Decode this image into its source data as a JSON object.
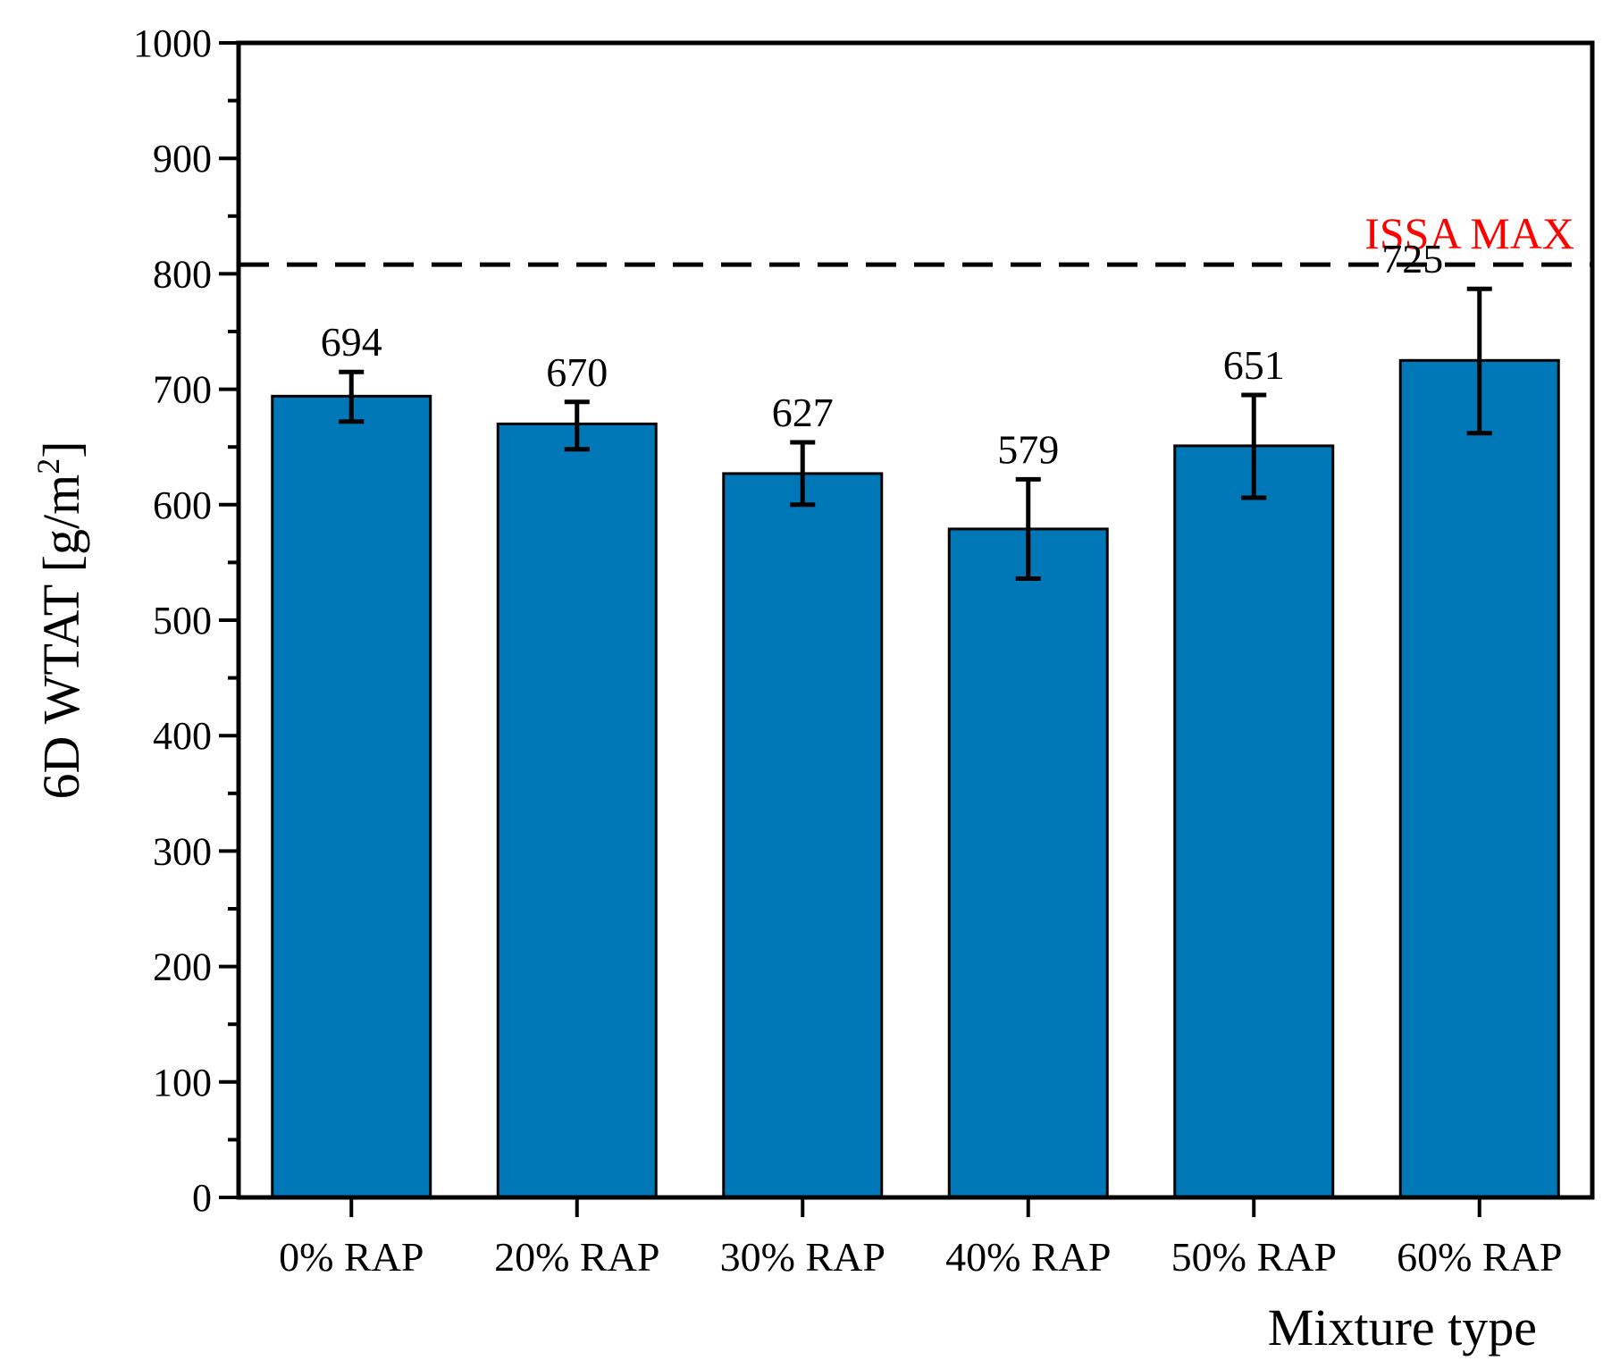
{
  "chart_data": {
    "type": "bar",
    "title": "",
    "xlabel": "Mixture type",
    "ylabel_main": "6D WTAT [g/m",
    "ylabel_sup": "2",
    "ylabel_end": "]",
    "ylim": [
      0,
      1000
    ],
    "yticks": [
      0,
      100,
      200,
      300,
      400,
      500,
      600,
      700,
      800,
      900,
      1000
    ],
    "ytick_labels": [
      "0",
      "100",
      "200",
      "300",
      "400",
      "500",
      "600",
      "700",
      "800",
      "900",
      "1000"
    ],
    "categories": [
      "0% RAP",
      "20% RAP",
      "30% RAP",
      "40% RAP",
      "50% RAP",
      "60% RAP"
    ],
    "values": [
      694,
      670,
      627,
      579,
      651,
      725
    ],
    "value_labels": [
      "694",
      "670",
      "627",
      "579",
      "651",
      "725"
    ],
    "error_low": [
      672,
      648,
      600,
      536,
      606,
      662
    ],
    "error_high": [
      715,
      689,
      654,
      622,
      695,
      787
    ],
    "bar_color": "#0077b6",
    "reference_line": {
      "value": 808,
      "label": "ISSA MAX",
      "label_color": "#ff0000",
      "line_style": "dashed"
    },
    "grid": false
  }
}
